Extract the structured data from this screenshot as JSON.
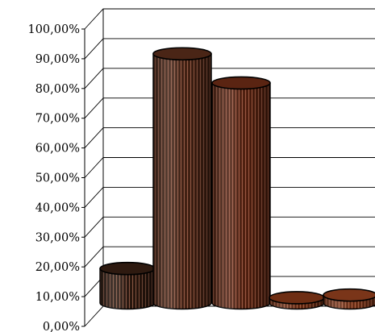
{
  "chart_data": {
    "type": "bar",
    "style": "3d-cylinder",
    "title": "",
    "xlabel": "",
    "ylabel": "",
    "categories": [
      "",
      "",
      "",
      "",
      ""
    ],
    "values": [
      13,
      94,
      83,
      2,
      3
    ],
    "ylim": [
      0,
      100
    ],
    "yticks": [
      "0,00%",
      "10,00%",
      "20,00%",
      "30,00%",
      "40,00%",
      "50,00%",
      "60,00%",
      "70,00%",
      "80,00%",
      "90,00%",
      "100,00%"
    ],
    "grid": true,
    "legend": "none",
    "colors": [
      "#2e1a10",
      "#4a2516",
      "#5a2412",
      "#6e2e14",
      "#7a3519"
    ]
  }
}
